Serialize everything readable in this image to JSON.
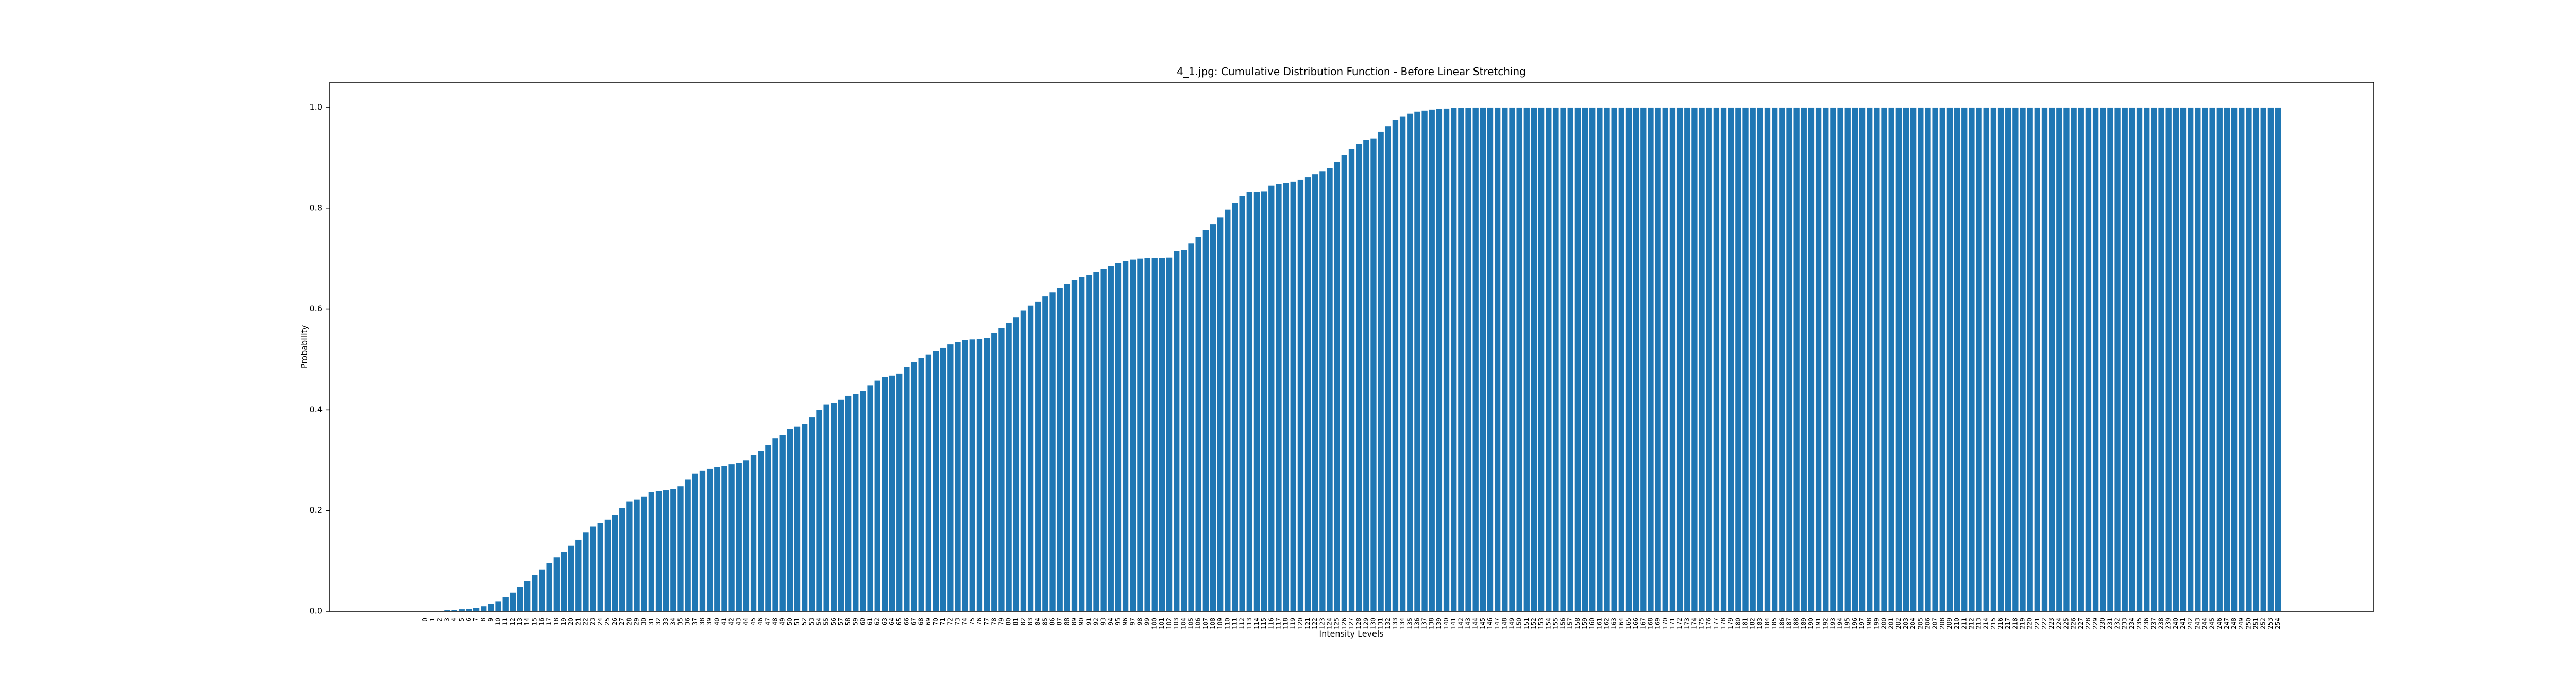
{
  "chart_data": {
    "type": "bar",
    "title": "4_1.jpg:  Cumulative  Distribution Function - Before Linear Stretching",
    "x_label": "Intensity Levels",
    "y_label": "Probability",
    "color": "#1f77b4",
    "ylim": [
      0,
      1.05
    ],
    "yticks": [
      {
        "value": 0,
        "label": "0.0"
      },
      0.2,
      0.4,
      0.6,
      0.8,
      {
        "value": 1,
        "label": "1.0"
      }
    ],
    "categories": [
      "0",
      "1",
      "2",
      "3",
      "4",
      "5",
      "6",
      "7",
      "8",
      "9",
      "10",
      "11",
      "12",
      "13",
      "14",
      "15",
      "16",
      "17",
      "18",
      "19",
      "20",
      "21",
      "22",
      "23",
      "24",
      "25",
      "26",
      "27",
      "28",
      "29",
      "30",
      "31",
      "32",
      "33",
      "34",
      "35",
      "36",
      "37",
      "38",
      "39",
      "40",
      "41",
      "42",
      "43",
      "44",
      "45",
      "46",
      "47",
      "48",
      "49",
      "50",
      "51",
      "52",
      "53",
      "54",
      "55",
      "56",
      "57",
      "58",
      "59",
      "60",
      "61",
      "62",
      "63",
      "64",
      "65",
      "66",
      "67",
      "68",
      "69",
      "70",
      "71",
      "72",
      "73",
      "74",
      "75",
      "76",
      "77",
      "78",
      "79",
      "80",
      "81",
      "82",
      "83",
      "84",
      "85",
      "86",
      "87",
      "88",
      "89",
      "90",
      "91",
      "92",
      "93",
      "94",
      "95",
      "96",
      "97",
      "98",
      "99",
      "100",
      "101",
      "102",
      "103",
      "104",
      "105",
      "106",
      "107",
      "108",
      "109",
      "110",
      "111",
      "112",
      "113",
      "114",
      "115",
      "116",
      "117",
      "118",
      "119",
      "120",
      "121",
      "122",
      "123",
      "124",
      "125",
      "126",
      "127",
      "128",
      "129",
      "130",
      "131",
      "132",
      "133",
      "134",
      "135",
      "136",
      "137",
      "138",
      "139",
      "140",
      "141",
      "142",
      "143",
      "144",
      "145",
      "146",
      "147",
      "148",
      "149",
      "150",
      "151",
      "152",
      "153",
      "154",
      "155",
      "156",
      "157",
      "158",
      "159",
      "160",
      "161",
      "162",
      "163",
      "164",
      "165",
      "166",
      "167",
      "168",
      "169",
      "170",
      "171",
      "172",
      "173",
      "174",
      "175",
      "176",
      "177",
      "178",
      "179",
      "180",
      "181",
      "182",
      "183",
      "184",
      "185",
      "186",
      "187",
      "188",
      "189",
      "190",
      "191",
      "192",
      "193",
      "194",
      "195",
      "196",
      "197",
      "198",
      "199",
      "200",
      "201",
      "202",
      "203",
      "204",
      "205",
      "206",
      "207",
      "208",
      "209",
      "210",
      "211",
      "212",
      "213",
      "214",
      "215",
      "216",
      "217",
      "218",
      "219",
      "220",
      "221",
      "222",
      "223",
      "224",
      "225",
      "226",
      "227",
      "228",
      "229",
      "230",
      "231",
      "232",
      "233",
      "234",
      "235",
      "236",
      "237",
      "238",
      "239",
      "240",
      "241",
      "242",
      "243",
      "244",
      "245",
      "246",
      "247",
      "248",
      "249",
      "250",
      "251",
      "252",
      "253",
      "254"
    ],
    "values": [
      0.0005,
      0.001,
      0.001,
      0.002,
      0.003,
      0.004,
      0.005,
      0.007,
      0.01,
      0.015,
      0.02,
      0.028,
      0.037,
      0.048,
      0.06,
      0.072,
      0.083,
      0.095,
      0.107,
      0.118,
      0.13,
      0.142,
      0.157,
      0.168,
      0.175,
      0.182,
      0.192,
      0.205,
      0.218,
      0.222,
      0.228,
      0.236,
      0.238,
      0.24,
      0.243,
      0.248,
      0.262,
      0.273,
      0.279,
      0.283,
      0.286,
      0.289,
      0.292,
      0.295,
      0.3,
      0.31,
      0.318,
      0.33,
      0.343,
      0.35,
      0.362,
      0.367,
      0.372,
      0.385,
      0.4,
      0.41,
      0.413,
      0.42,
      0.428,
      0.432,
      0.438,
      0.448,
      0.458,
      0.465,
      0.468,
      0.472,
      0.485,
      0.495,
      0.503,
      0.51,
      0.516,
      0.523,
      0.53,
      0.535,
      0.539,
      0.54,
      0.541,
      0.543,
      0.552,
      0.562,
      0.573,
      0.583,
      0.597,
      0.607,
      0.615,
      0.625,
      0.633,
      0.642,
      0.65,
      0.657,
      0.663,
      0.668,
      0.674,
      0.68,
      0.686,
      0.691,
      0.695,
      0.698,
      0.7,
      0.701,
      0.701,
      0.701,
      0.702,
      0.716,
      0.718,
      0.73,
      0.743,
      0.757,
      0.768,
      0.782,
      0.797,
      0.81,
      0.825,
      0.832,
      0.832,
      0.833,
      0.845,
      0.848,
      0.85,
      0.853,
      0.857,
      0.862,
      0.867,
      0.873,
      0.88,
      0.892,
      0.905,
      0.918,
      0.928,
      0.935,
      0.938,
      0.952,
      0.963,
      0.975,
      0.982,
      0.988,
      0.992,
      0.994,
      0.996,
      0.997,
      0.998,
      0.999,
      0.999,
      0.999,
      1,
      1,
      1,
      1,
      1,
      1,
      1,
      1,
      1,
      1,
      1,
      1,
      1,
      1,
      1,
      1,
      1,
      1,
      1,
      1,
      1,
      1,
      1,
      1,
      1,
      1,
      1,
      1,
      1,
      1,
      1,
      1,
      1,
      1,
      1,
      1,
      1,
      1,
      1,
      1,
      1,
      1,
      1,
      1,
      1,
      1,
      1,
      1,
      1,
      1,
      1,
      1,
      1,
      1,
      1,
      1,
      1,
      1,
      1,
      1,
      1,
      1,
      1,
      1,
      1,
      1,
      1,
      1,
      1,
      1,
      1,
      1,
      1,
      1,
      1,
      1,
      1,
      1,
      1,
      1,
      1,
      1,
      1,
      1,
      1,
      1,
      1,
      1,
      1,
      1,
      1,
      1,
      1,
      1,
      1,
      1,
      1,
      1,
      1,
      1,
      1,
      1,
      1,
      1,
      1,
      1,
      1,
      1,
      1,
      1,
      1
    ]
  }
}
